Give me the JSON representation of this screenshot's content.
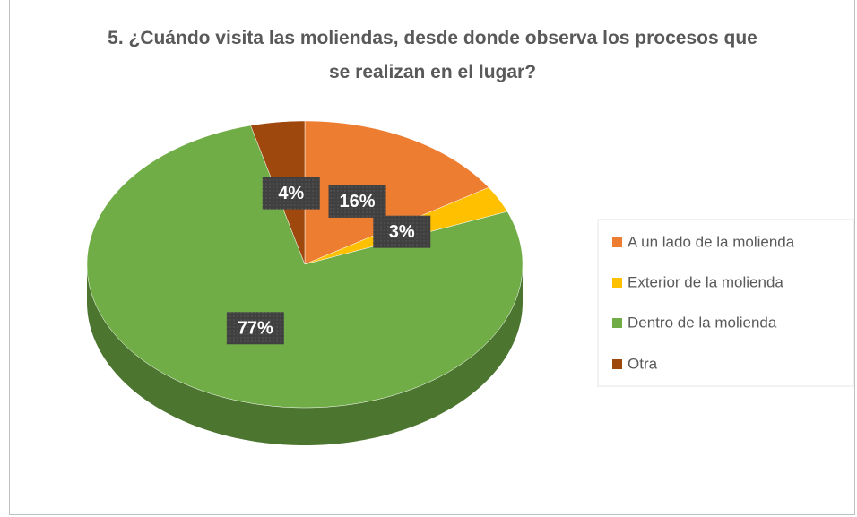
{
  "chart_data": {
    "type": "pie",
    "title": "5. ¿Cuándo visita las moliendas, desde donde observa los procesos que se realizan en el lugar?",
    "categories": [
      "A un lado de la molienda",
      "Exterior de la molienda",
      "Dentro de la molienda",
      "Otra"
    ],
    "values": [
      16,
      3,
      77,
      4
    ],
    "value_labels": [
      "16%",
      "3%",
      "77%",
      "4%"
    ],
    "colors": [
      "#ed7d31",
      "#ffc000",
      "#70ad47",
      "#9e480e"
    ],
    "legend": "right"
  }
}
